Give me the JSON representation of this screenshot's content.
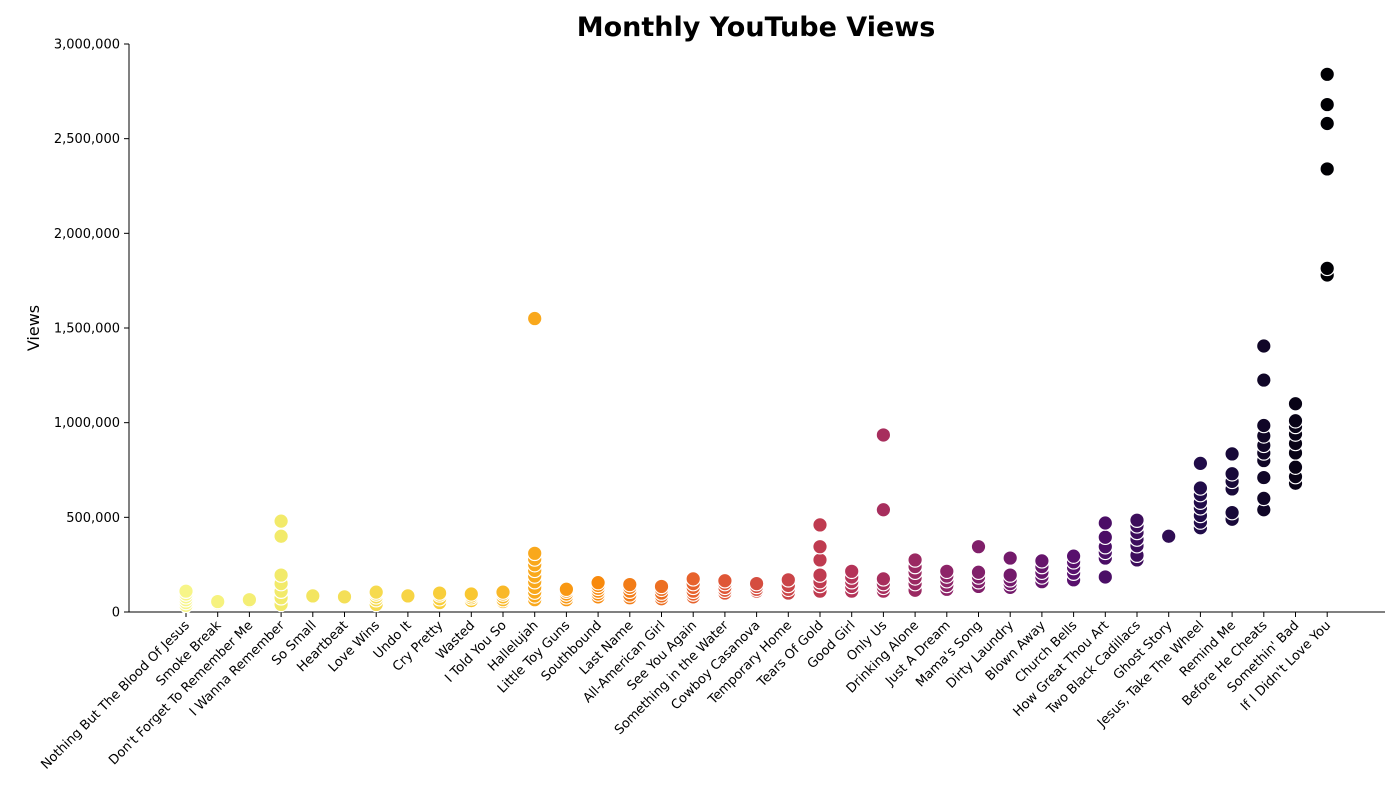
{
  "chart_data": {
    "type": "scatter",
    "title": "Monthly YouTube Views",
    "xlabel": "",
    "ylabel": "Views",
    "ylim": [
      0,
      3000000
    ],
    "yticks": [
      "0",
      "500,000",
      "1,000,000",
      "1,500,000",
      "2,000,000",
      "2,500,000",
      "3,000,000"
    ],
    "ytick_values": [
      0,
      500000,
      1000000,
      1500000,
      2000000,
      2500000,
      3000000
    ],
    "grid": false,
    "legend": "none",
    "colormap": "inferno (reversed)",
    "categories": [
      "Nothing But The Blood Of Jesus",
      "Smoke Break",
      "Don't Forget To Remember Me",
      "I Wanna Remember",
      "So Small",
      "Heartbeat",
      "Love Wins",
      "Undo It",
      "Cry Pretty",
      "Wasted",
      "I Told You So",
      "Hallelujah",
      "Little Toy Guns",
      "Southbound",
      "Last Name",
      "All-American Girl",
      "See You Again",
      "Something in the Water",
      "Cowboy Casanova",
      "Temporary Home",
      "Tears Of Gold",
      "Good Girl",
      "Only Us",
      "Drinking Alone",
      "Just A Dream",
      "Mama's Song",
      "Dirty Laundry",
      "Blown Away",
      "Church Bells",
      "How Great Thou Art",
      "Two Black Cadillacs",
      "Ghost Story",
      "Jesus, Take The Wheel",
      "Remind Me",
      "Before He Cheats",
      "Somethin' Bad",
      "If I Didn't Love You"
    ],
    "values": [
      [
        110000,
        95000,
        80000,
        65000,
        50000,
        35000
      ],
      [
        55000,
        48000
      ],
      [
        65000,
        58000
      ],
      [
        480000,
        400000,
        195000,
        150000,
        110000,
        75000,
        40000
      ],
      [
        85000,
        80000
      ],
      [
        80000,
        75000
      ],
      [
        105000,
        95000,
        80000,
        65000,
        40000
      ],
      [
        85000,
        80000
      ],
      [
        100000,
        90000,
        70000,
        50000
      ],
      [
        95000,
        85000,
        75000,
        60000
      ],
      [
        105000,
        95000,
        80000,
        65000,
        55000
      ],
      [
        1550000,
        310000,
        280000,
        250000,
        220000,
        190000,
        160000,
        130000,
        105000,
        85000,
        65000
      ],
      [
        120000,
        110000,
        95000,
        80000,
        65000
      ],
      [
        155000,
        140000,
        125000,
        110000,
        95000,
        80000
      ],
      [
        145000,
        130000,
        110000,
        90000,
        75000
      ],
      [
        135000,
        120000,
        100000,
        85000,
        70000
      ],
      [
        175000,
        150000,
        130000,
        110000,
        95000,
        80000
      ],
      [
        165000,
        150000,
        130000,
        115000,
        100000
      ],
      [
        150000,
        135000,
        120000,
        110000
      ],
      [
        170000,
        140000,
        120000,
        100000
      ],
      [
        460000,
        345000,
        275000,
        195000,
        160000,
        140000,
        110000
      ],
      [
        215000,
        185000,
        160000,
        135000,
        110000
      ],
      [
        935000,
        540000,
        175000,
        150000,
        130000,
        110000
      ],
      [
        275000,
        240000,
        210000,
        180000,
        150000,
        115000
      ],
      [
        215000,
        190000,
        165000,
        140000,
        120000
      ],
      [
        345000,
        210000,
        185000,
        160000,
        135000
      ],
      [
        285000,
        195000,
        170000,
        150000,
        130000
      ],
      [
        270000,
        240000,
        210000,
        185000,
        160000
      ],
      [
        295000,
        265000,
        235000,
        205000,
        170000
      ],
      [
        470000,
        395000,
        345000,
        315000,
        285000,
        185000
      ],
      [
        485000,
        455000,
        420000,
        385000,
        350000,
        300000,
        275000
      ],
      [
        400000
      ],
      [
        785000,
        655000,
        620000,
        580000,
        550000,
        510000,
        475000,
        445000
      ],
      [
        835000,
        730000,
        690000,
        650000,
        525000,
        490000
      ],
      [
        1405000,
        1225000,
        985000,
        930000,
        880000,
        840000,
        800000,
        710000,
        600000,
        540000
      ],
      [
        1100000,
        1010000,
        980000,
        940000,
        890000,
        840000,
        765000,
        715000,
        680000
      ],
      [
        2840000,
        2680000,
        2580000,
        2340000,
        1815000,
        1780000
      ]
    ]
  }
}
